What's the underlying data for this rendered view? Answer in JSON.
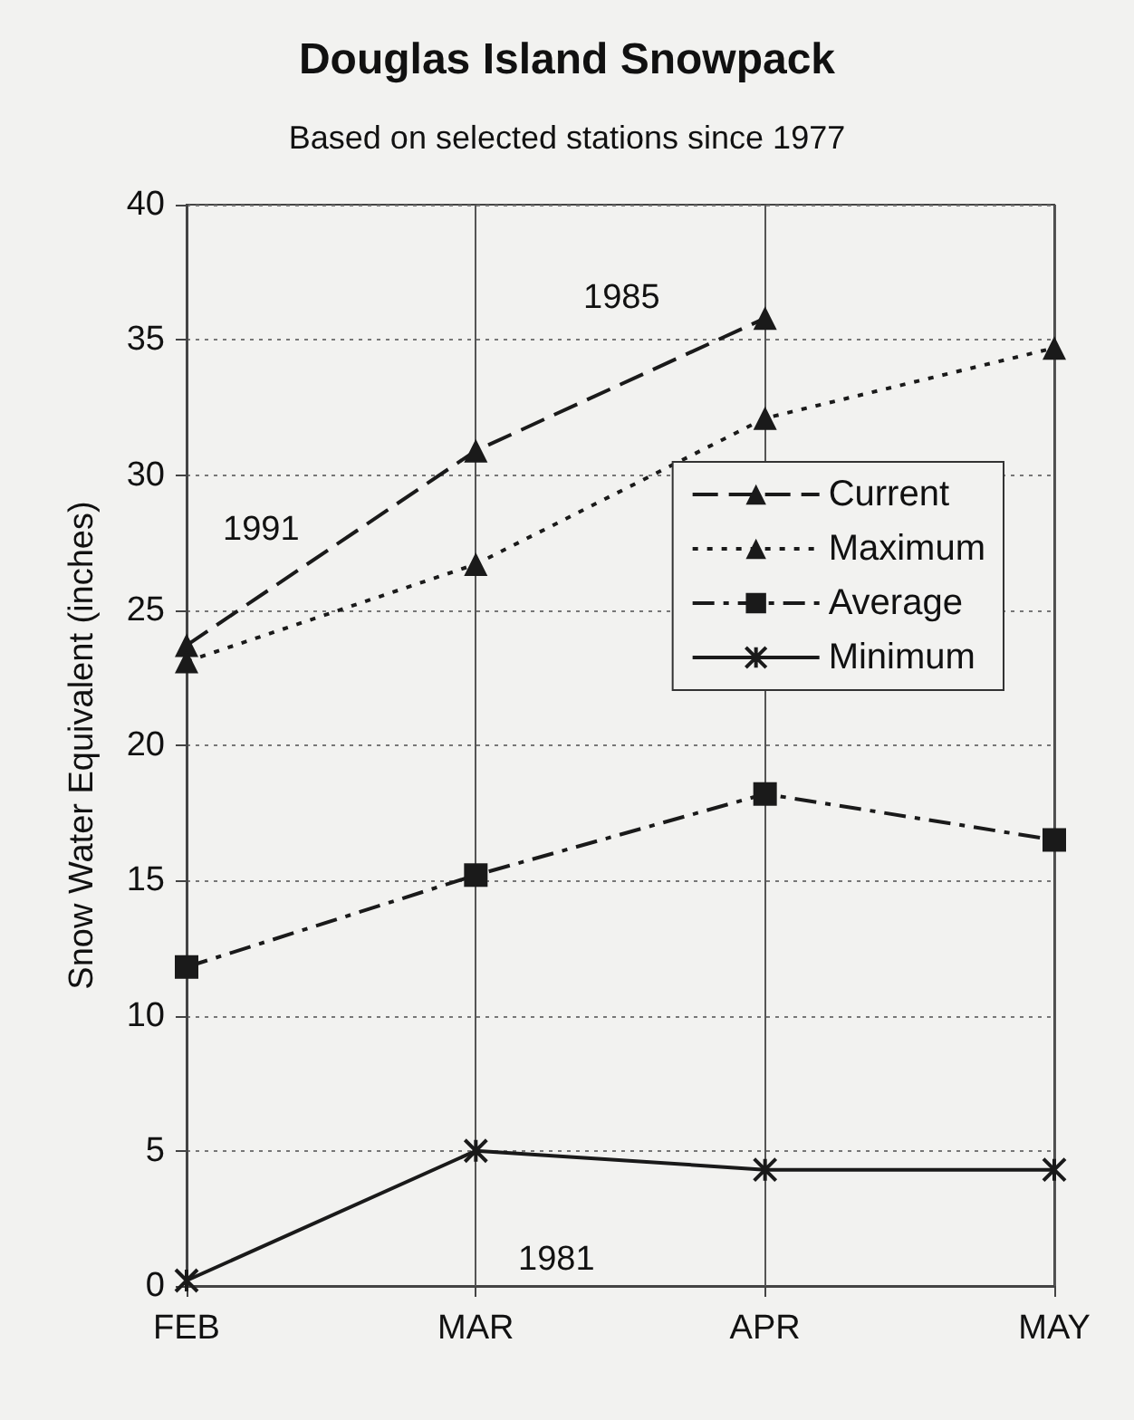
{
  "chart_data": {
    "type": "line",
    "title": "Douglas Island Snowpack",
    "subtitle": "Based on selected stations since 1977",
    "ylabel": "Snow Water Equivalent (inches)",
    "categories": [
      "FEB",
      "MAR",
      "APR",
      "MAY"
    ],
    "series": [
      {
        "name": "Current",
        "color": "#1a1a1a",
        "marker": "triangle",
        "line_style": "dashed",
        "values": [
          23.7,
          30.9,
          35.8,
          null
        ]
      },
      {
        "name": "Maximum",
        "color": "#1a1a1a",
        "marker": "triangle",
        "line_style": "dotted",
        "values": [
          23.1,
          26.7,
          32.1,
          34.7
        ]
      },
      {
        "name": "Average",
        "color": "#1a1a1a",
        "marker": "square",
        "line_style": "dashdot",
        "values": [
          11.8,
          15.2,
          18.2,
          16.5
        ]
      },
      {
        "name": "Minimum",
        "color": "#1a1a1a",
        "marker": "cross",
        "line_style": "solid",
        "values": [
          0.2,
          5.0,
          4.3,
          4.3
        ]
      }
    ],
    "ylim": [
      0,
      40
    ],
    "yticks": [
      0,
      5,
      10,
      15,
      20,
      25,
      30,
      35,
      40
    ],
    "grid": true,
    "legend": "right",
    "annotations": [
      "1991",
      "1985",
      "1981"
    ]
  }
}
